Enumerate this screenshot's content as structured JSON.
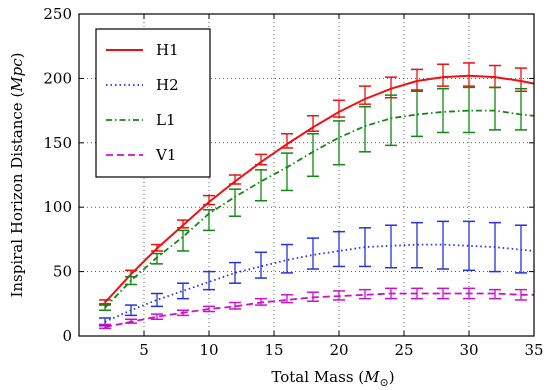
{
  "chart_data": {
    "type": "line",
    "title": "",
    "xlabel": "Total Mass (",
    "xlabel_sym": "M",
    "xlabel_sub": "⊙",
    "xlabel_end": ")",
    "ylabel": "Inspiral Horizon Distance (",
    "ylabel_sym": "Mpc",
    "ylabel_end": ")",
    "xlim": [
      0,
      35
    ],
    "ylim": [
      0,
      250
    ],
    "xticks": [
      5,
      10,
      15,
      20,
      25,
      30,
      35
    ],
    "yticks": [
      0,
      50,
      100,
      150,
      200,
      250
    ],
    "grid": true,
    "legend_position": "top-left",
    "series": [
      {
        "name": "H1",
        "color": "#ee1111",
        "style": "solid",
        "curve": {
          "x": [
            2,
            4,
            6,
            8,
            10,
            12,
            14,
            16,
            18,
            20,
            22,
            24,
            26,
            28,
            30,
            32,
            34,
            35
          ],
          "y": [
            26,
            48,
            68,
            86,
            104,
            120,
            135,
            149,
            162,
            174,
            184,
            192,
            198,
            201,
            202,
            201,
            198,
            196
          ]
        },
        "errorbars": {
          "x": [
            2,
            4,
            6,
            8,
            10,
            12,
            14,
            16,
            18,
            20,
            22,
            24,
            26,
            28,
            30,
            32,
            34
          ],
          "low": [
            25,
            46,
            66,
            84,
            102,
            118,
            133,
            146,
            159,
            170,
            180,
            185,
            191,
            194,
            194,
            193,
            190
          ],
          "high": [
            28,
            51,
            71,
            90,
            109,
            125,
            141,
            157,
            171,
            183,
            194,
            201,
            207,
            211,
            212,
            210,
            208
          ]
        }
      },
      {
        "name": "H2",
        "color": "#2233dd",
        "style": "dotted",
        "curve": {
          "x": [
            2,
            4,
            6,
            8,
            10,
            12,
            14,
            16,
            18,
            20,
            22,
            24,
            26,
            28,
            30,
            32,
            34,
            35
          ],
          "y": [
            11,
            20,
            28,
            35,
            42,
            49,
            54,
            59,
            63,
            66,
            69,
            70,
            71,
            71,
            70,
            69,
            67,
            66
          ]
        },
        "errorbars": {
          "x": [
            2,
            4,
            6,
            8,
            10,
            12,
            14,
            16,
            18,
            20,
            22,
            24,
            26,
            28,
            30,
            32,
            34
          ],
          "low": [
            8,
            16,
            23,
            29,
            36,
            41,
            45,
            49,
            52,
            54,
            54,
            53,
            53,
            52,
            51,
            50,
            49
          ],
          "high": [
            14,
            24,
            33,
            41,
            50,
            57,
            65,
            71,
            76,
            81,
            84,
            86,
            88,
            89,
            89,
            88,
            86
          ]
        }
      },
      {
        "name": "L1",
        "color": "#118811",
        "style": "dashdot",
        "curve": {
          "x": [
            2,
            4,
            6,
            8,
            10,
            12,
            14,
            16,
            18,
            20,
            22,
            24,
            26,
            28,
            30,
            32,
            34,
            35
          ],
          "y": [
            22,
            43,
            61,
            77,
            95,
            108,
            120,
            131,
            143,
            154,
            163,
            169,
            172,
            174,
            175,
            175,
            172,
            171
          ]
        },
        "errorbars": {
          "x": [
            2,
            4,
            6,
            8,
            10,
            12,
            14,
            16,
            18,
            20,
            22,
            24,
            26,
            28,
            30,
            32,
            34
          ],
          "low": [
            20,
            40,
            56,
            66,
            82,
            93,
            105,
            113,
            124,
            133,
            143,
            148,
            155,
            158,
            158,
            160,
            160
          ],
          "high": [
            24,
            46,
            64,
            82,
            98,
            114,
            129,
            142,
            157,
            167,
            178,
            187,
            190,
            192,
            193,
            193,
            192
          ]
        }
      },
      {
        "name": "V1",
        "color": "#cc11cc",
        "style": "dashed",
        "curve": {
          "x": [
            2,
            4,
            6,
            8,
            10,
            12,
            14,
            16,
            18,
            20,
            22,
            24,
            26,
            28,
            30,
            32,
            34,
            35
          ],
          "y": [
            7,
            11,
            15,
            18,
            21,
            23,
            26,
            28,
            30,
            31,
            32,
            33,
            33,
            33,
            33,
            33,
            32,
            32
          ]
        },
        "errorbars": {
          "x": [
            2,
            4,
            6,
            8,
            10,
            12,
            14,
            16,
            18,
            20,
            22,
            24,
            26,
            28,
            30,
            32,
            34
          ],
          "low": [
            6,
            10,
            13,
            16,
            19,
            21,
            24,
            26,
            27,
            28,
            29,
            29,
            29,
            29,
            29,
            29,
            28
          ],
          "high": [
            9,
            13,
            17,
            20,
            23,
            26,
            29,
            32,
            34,
            35,
            36,
            37,
            37,
            37,
            37,
            36,
            36
          ]
        }
      }
    ]
  }
}
